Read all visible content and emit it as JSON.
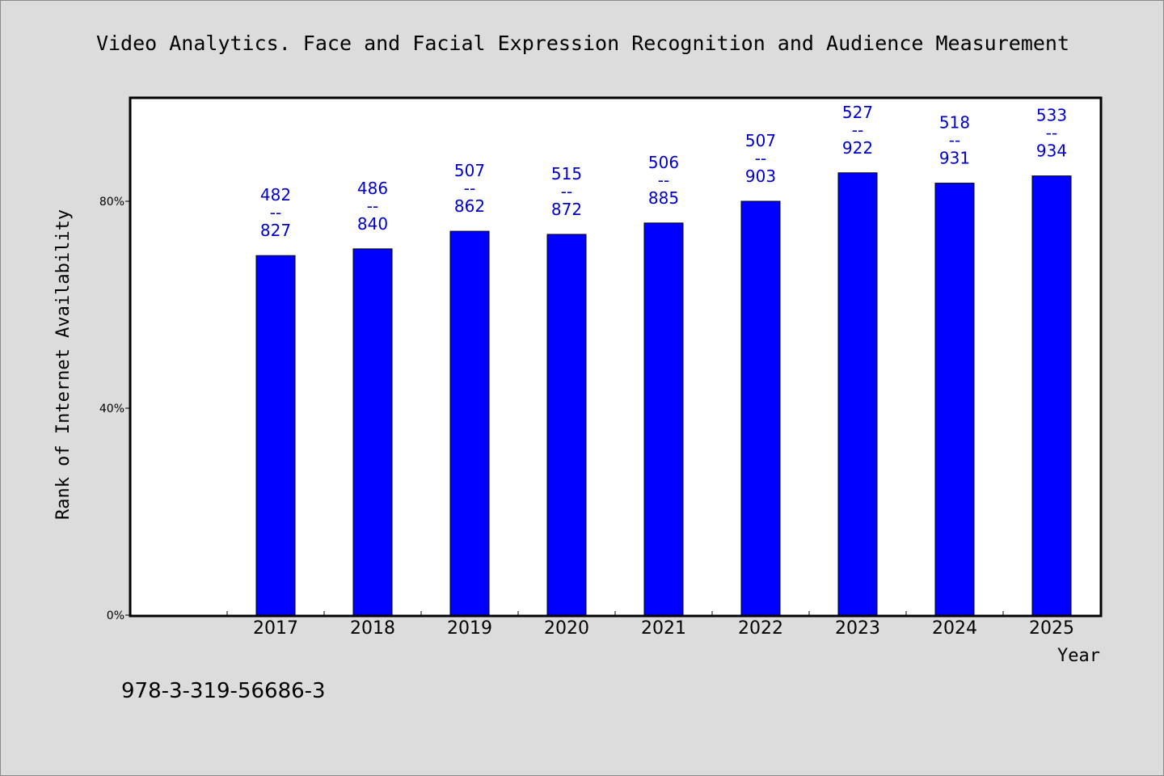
{
  "chart_data": {
    "type": "bar",
    "title": "Video Analytics. Face and Facial Expression Recognition and Audience Measurement",
    "xlabel": "Year",
    "ylabel": "Rank of Internet Availability",
    "categories": [
      "2017",
      "2018",
      "2019",
      "2020",
      "2021",
      "2022",
      "2023",
      "2024",
      "2025"
    ],
    "values": [
      69.5,
      70.8,
      74.2,
      73.6,
      75.8,
      80.0,
      85.5,
      83.5,
      84.9
    ],
    "ylim": [
      0,
      100
    ],
    "yticks": [
      {
        "value": 0,
        "label": "0%"
      },
      {
        "value": 40,
        "label": "40%"
      },
      {
        "value": 80,
        "label": "80%"
      }
    ],
    "data_labels": [
      {
        "top": "482",
        "sep": "--",
        "bottom": "827"
      },
      {
        "top": "486",
        "sep": "--",
        "bottom": "840"
      },
      {
        "top": "507",
        "sep": "--",
        "bottom": "862"
      },
      {
        "top": "515",
        "sep": "--",
        "bottom": "872"
      },
      {
        "top": "506",
        "sep": "--",
        "bottom": "885"
      },
      {
        "top": "507",
        "sep": "--",
        "bottom": "903"
      },
      {
        "top": "527",
        "sep": "--",
        "bottom": "922"
      },
      {
        "top": "518",
        "sep": "--",
        "bottom": "931"
      },
      {
        "top": "533",
        "sep": "--",
        "bottom": "934"
      }
    ],
    "bar_color": "#0000ff",
    "label_color": "#0000cc",
    "grid": false,
    "legend": "none"
  },
  "footnote": "978-3-319-56686-3"
}
